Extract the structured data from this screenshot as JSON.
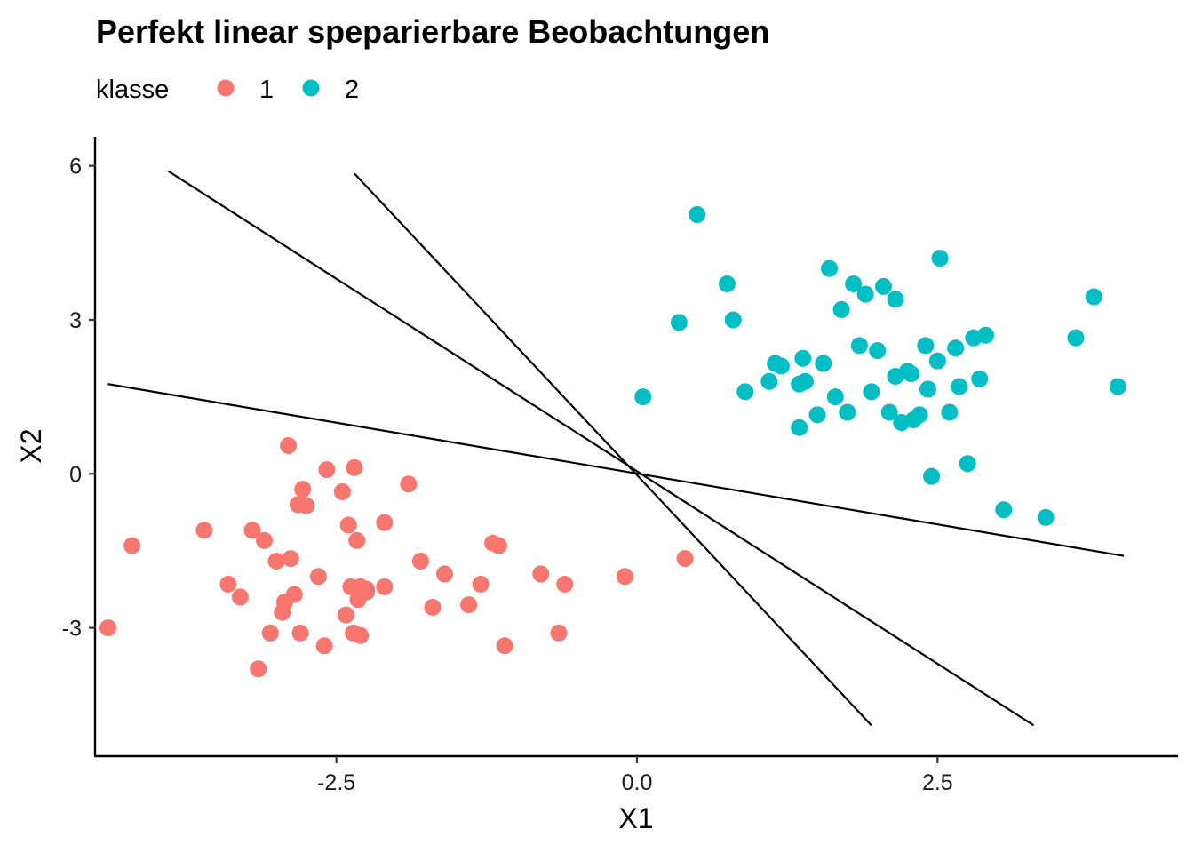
{
  "chart_data": {
    "type": "scatter",
    "title": "Perfekt linear speparierbare Beobachtungen",
    "xlabel": "X1",
    "ylabel": "X2",
    "xlim": [
      -4.5,
      4.5
    ],
    "ylim": [
      -5.5,
      6.6
    ],
    "x_ticks": [
      -2.5,
      0.0,
      2.5
    ],
    "x_tick_labels": [
      "-2.5",
      "0.0",
      "2.5"
    ],
    "y_ticks": [
      -3,
      0,
      3,
      6
    ],
    "y_tick_labels": [
      "-3",
      "0",
      "3",
      "6"
    ],
    "grid": false,
    "legend": {
      "title": "klasse",
      "position": "top-left"
    },
    "series": [
      {
        "name": "1",
        "color": "#F8766D",
        "points": [
          [
            -4.4,
            -3.0
          ],
          [
            -4.2,
            -1.4
          ],
          [
            -3.6,
            -1.1
          ],
          [
            -3.4,
            -2.15
          ],
          [
            -3.3,
            -2.4
          ],
          [
            -3.2,
            -1.1
          ],
          [
            -3.15,
            -3.8
          ],
          [
            -3.1,
            -1.3
          ],
          [
            -3.05,
            -3.1
          ],
          [
            -3.0,
            -1.7
          ],
          [
            -2.95,
            -2.7
          ],
          [
            -2.93,
            -2.5
          ],
          [
            -2.9,
            0.55
          ],
          [
            -2.88,
            -1.65
          ],
          [
            -2.85,
            -2.35
          ],
          [
            -2.82,
            -0.6
          ],
          [
            -2.8,
            -3.1
          ],
          [
            -2.78,
            -0.3
          ],
          [
            -2.75,
            -0.62
          ],
          [
            -2.65,
            -2.0
          ],
          [
            -2.6,
            -3.35
          ],
          [
            -2.58,
            0.08
          ],
          [
            -2.45,
            -0.35
          ],
          [
            -2.42,
            -2.75
          ],
          [
            -2.4,
            -1.0
          ],
          [
            -2.38,
            -2.2
          ],
          [
            -2.36,
            -3.1
          ],
          [
            -2.35,
            0.12
          ],
          [
            -2.33,
            -1.3
          ],
          [
            -2.32,
            -2.45
          ],
          [
            -2.3,
            -2.2
          ],
          [
            -2.3,
            -3.15
          ],
          [
            -2.25,
            -2.3
          ],
          [
            -2.25,
            -2.25
          ],
          [
            -2.1,
            -2.2
          ],
          [
            -2.1,
            -0.95
          ],
          [
            -1.9,
            -0.2
          ],
          [
            -1.8,
            -1.7
          ],
          [
            -1.7,
            -2.6
          ],
          [
            -1.6,
            -1.95
          ],
          [
            -1.4,
            -2.55
          ],
          [
            -1.3,
            -2.15
          ],
          [
            -1.2,
            -1.35
          ],
          [
            -1.15,
            -1.4
          ],
          [
            -1.1,
            -3.35
          ],
          [
            -0.8,
            -1.95
          ],
          [
            -0.65,
            -3.1
          ],
          [
            -0.6,
            -2.15
          ],
          [
            -0.1,
            -2.0
          ],
          [
            0.4,
            -1.65
          ]
        ]
      },
      {
        "name": "2",
        "color": "#00BFC4",
        "points": [
          [
            0.05,
            1.5
          ],
          [
            0.35,
            2.95
          ],
          [
            0.5,
            5.05
          ],
          [
            0.75,
            3.7
          ],
          [
            0.8,
            3.0
          ],
          [
            0.9,
            1.6
          ],
          [
            1.1,
            1.8
          ],
          [
            1.15,
            2.15
          ],
          [
            1.2,
            2.1
          ],
          [
            1.35,
            1.75
          ],
          [
            1.35,
            0.9
          ],
          [
            1.38,
            2.25
          ],
          [
            1.4,
            1.8
          ],
          [
            1.5,
            1.15
          ],
          [
            1.55,
            2.15
          ],
          [
            1.6,
            4.0
          ],
          [
            1.65,
            1.5
          ],
          [
            1.7,
            3.2
          ],
          [
            1.75,
            1.2
          ],
          [
            1.8,
            3.7
          ],
          [
            1.85,
            2.5
          ],
          [
            1.9,
            3.5
          ],
          [
            1.95,
            1.6
          ],
          [
            2.0,
            2.4
          ],
          [
            2.05,
            3.65
          ],
          [
            2.1,
            1.2
          ],
          [
            2.15,
            3.4
          ],
          [
            2.15,
            1.9
          ],
          [
            2.2,
            1.0
          ],
          [
            2.25,
            2.0
          ],
          [
            2.28,
            1.95
          ],
          [
            2.3,
            1.05
          ],
          [
            2.35,
            1.15
          ],
          [
            2.4,
            2.5
          ],
          [
            2.42,
            1.65
          ],
          [
            2.45,
            -0.05
          ],
          [
            2.5,
            2.2
          ],
          [
            2.52,
            4.2
          ],
          [
            2.6,
            1.2
          ],
          [
            2.65,
            2.45
          ],
          [
            2.68,
            1.7
          ],
          [
            2.75,
            0.2
          ],
          [
            2.8,
            2.65
          ],
          [
            2.85,
            1.85
          ],
          [
            2.9,
            2.7
          ],
          [
            3.05,
            -0.7
          ],
          [
            3.4,
            -0.85
          ],
          [
            3.65,
            2.65
          ],
          [
            3.8,
            3.45
          ],
          [
            4.0,
            1.7
          ]
        ]
      }
    ],
    "lines": [
      [
        [
          -4.4,
          1.75
        ],
        [
          4.05,
          -1.6
        ]
      ],
      [
        [
          -3.9,
          5.9
        ],
        [
          3.3,
          -4.9
        ]
      ],
      [
        [
          -2.35,
          5.85
        ],
        [
          1.95,
          -4.9
        ]
      ]
    ]
  }
}
